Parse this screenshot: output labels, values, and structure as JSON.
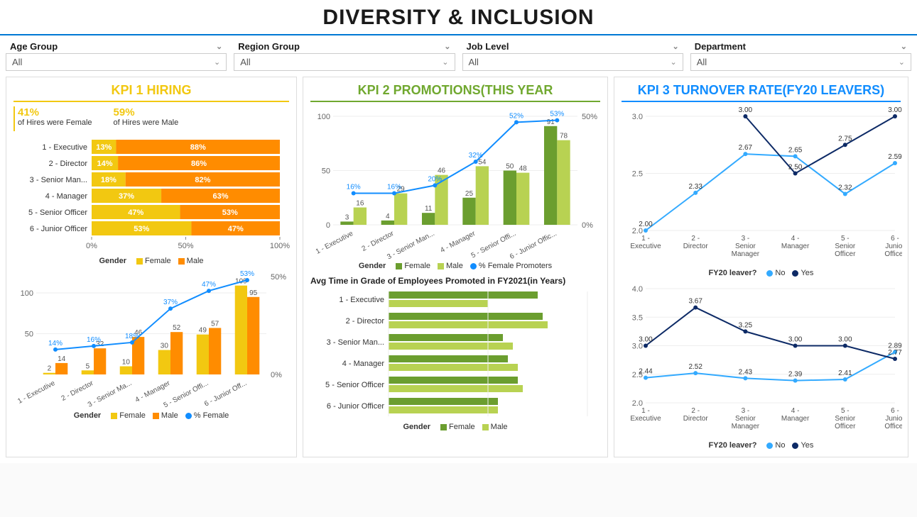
{
  "title": "DIVERSITY & INCLUSION",
  "filters": [
    {
      "label": "Age Group",
      "value": "All"
    },
    {
      "label": "Region Group",
      "value": "All"
    },
    {
      "label": "Job Level",
      "value": "All"
    },
    {
      "label": "Department",
      "value": "All"
    }
  ],
  "colors": {
    "female_yellow": "#f2c811",
    "male_orange": "#ff8c00",
    "line_blue": "#118dff",
    "female_green_dark": "#6b9e2f",
    "male_green_light": "#b8d252",
    "no_blue": "#33aaff",
    "yes_navy": "#0d2a66",
    "grid": "#e6e6e6",
    "axis": "#888",
    "text": "#333"
  },
  "kpi1": {
    "title": "KPI 1 HIRING",
    "stats": [
      {
        "pct": "41%",
        "label": "of Hires were Female"
      },
      {
        "pct": "59%",
        "label": "of Hires were Male"
      }
    ],
    "stacked": {
      "type": "stacked-bar-horizontal",
      "categories": [
        "1 - Executive",
        "2 - Director",
        "3 - Senior Man...",
        "4 - Manager",
        "5 - Senior Officer",
        "6 - Junior Officer"
      ],
      "female_pct": [
        13,
        14,
        18,
        37,
        47,
        53
      ],
      "male_pct": [
        88,
        86,
        82,
        63,
        53,
        47
      ],
      "female_color": "#f2c811",
      "male_color": "#ff8c00",
      "xticks": [
        "0%",
        "50%",
        "100%"
      ],
      "legend_title": "Gender",
      "legend_items": [
        "Female",
        "Male"
      ]
    },
    "combo": {
      "type": "clustered-bar-with-line",
      "categories": [
        "1 - Executive",
        "2 - Director",
        "3 - Senior Ma...",
        "4 - Manager",
        "5 - Senior Offi...",
        "6 - Junior Off..."
      ],
      "female_vals": [
        2,
        5,
        10,
        30,
        49,
        109
      ],
      "male_vals": [
        14,
        32,
        46,
        52,
        57,
        95
      ],
      "line_pct": [
        14,
        16,
        18,
        37,
        47,
        53
      ],
      "y_left_max": 120,
      "y_left_ticks": [
        50,
        100
      ],
      "y_right_max": 50,
      "y_right_ticks": [
        "0%",
        "50%"
      ],
      "female_color": "#f2c811",
      "male_color": "#ff8c00",
      "line_color": "#118dff",
      "legend_title": "Gender",
      "legend_items": [
        "Female",
        "Male",
        "% Female"
      ]
    }
  },
  "kpi2": {
    "title": "KPI 2 PROMOTIONS(THIS YEAR",
    "combo": {
      "type": "clustered-bar-with-line",
      "categories": [
        "1 - Executive",
        "2 - Director",
        "3 - Senior Man...",
        "4 - Manager",
        "5 - Senior Offi...",
        "6 - Junior Offic..."
      ],
      "female_vals": [
        3,
        4,
        11,
        25,
        50,
        91
      ],
      "male_vals": [
        16,
        29,
        46,
        54,
        48,
        78
      ],
      "line_pct": [
        16,
        16,
        20,
        32,
        52,
        53
      ],
      "y_left_max": 100,
      "y_left_ticks": [
        0,
        50,
        100
      ],
      "y_right_ticks": [
        "0%",
        "50%"
      ],
      "female_color": "#6b9e2f",
      "male_color": "#b8d252",
      "line_color": "#118dff",
      "legend_title": "Gender",
      "legend_items": [
        "Female",
        "Male",
        "% Female Promoters"
      ]
    },
    "avg_time": {
      "title": "Avg Time in Grade of Employees Promoted in FY2021(in Years)",
      "type": "grouped-bar-horizontal",
      "categories": [
        "1 - Executive",
        "2 - Director",
        "3 - Senior Man...",
        "4 - Manager",
        "5 - Senior Officer",
        "6 - Junior Officer"
      ],
      "female_vals": [
        3.0,
        3.1,
        2.3,
        2.4,
        2.6,
        2.2
      ],
      "male_vals": [
        2.0,
        3.2,
        2.5,
        2.6,
        2.7,
        2.2
      ],
      "xmax": 4,
      "xticks": [
        0,
        2,
        4
      ],
      "female_color": "#6b9e2f",
      "male_color": "#b8d252",
      "legend_title": "Gender",
      "legend_items": [
        "Female",
        "Male"
      ]
    }
  },
  "kpi3": {
    "title": "KPI 3 TURNOVER RATE(FY20 LEAVERS)",
    "chart_a": {
      "type": "line",
      "categories": [
        "1 -\nExecutive",
        "2 -\nDirector",
        "3 -\nSenior\nManager",
        "4 -\nManager",
        "5 -\nSenior\nOfficer",
        "6 -\nJunior\nOfficer"
      ],
      "no_vals": [
        2.0,
        2.33,
        2.67,
        2.65,
        2.32,
        2.59
      ],
      "yes_vals": [
        null,
        null,
        3.0,
        2.5,
        2.75,
        3.0
      ],
      "ymin": 2.0,
      "ymax": 3.0,
      "yticks": [
        2.0,
        2.5,
        3.0
      ],
      "no_color": "#33aaff",
      "yes_color": "#0d2a66",
      "legend_title": "FY20 leaver?",
      "legend_items": [
        "No",
        "Yes"
      ]
    },
    "chart_b": {
      "type": "line",
      "categories": [
        "1 -\nExecutive",
        "2 -\nDirector",
        "3 -\nSenior\nManager",
        "4 -\nManager",
        "5 -\nSenior\nOfficer",
        "6 -\nJunior\nOfficer"
      ],
      "no_vals": [
        2.44,
        2.52,
        2.43,
        2.39,
        2.41,
        2.89
      ],
      "yes_vals": [
        3.0,
        3.67,
        3.25,
        3.0,
        3.0,
        2.77
      ],
      "ymin": 2.0,
      "ymax": 4.0,
      "yticks": [
        2.0,
        2.5,
        3.0,
        3.5,
        4.0
      ],
      "no_color": "#33aaff",
      "yes_color": "#0d2a66",
      "legend_title": "FY20 leaver?",
      "legend_items": [
        "No",
        "Yes"
      ]
    }
  }
}
